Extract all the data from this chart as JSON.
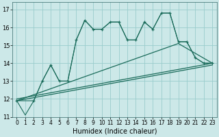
{
  "xlabel": "Humidex (Indice chaleur)",
  "background_color": "#cce8e8",
  "grid_color": "#99cccc",
  "line_color": "#1a6b5a",
  "xlim": [
    -0.5,
    23.5
  ],
  "ylim": [
    11,
    17.4
  ],
  "yticks": [
    11,
    12,
    13,
    14,
    15,
    16,
    17
  ],
  "xticks": [
    0,
    1,
    2,
    3,
    4,
    5,
    6,
    7,
    8,
    9,
    10,
    11,
    12,
    13,
    14,
    15,
    16,
    17,
    18,
    19,
    20,
    21,
    22,
    23
  ],
  "jagged_x": [
    0,
    1,
    2,
    3,
    4,
    5,
    6,
    7,
    8,
    9,
    10,
    11,
    12,
    13,
    14,
    15,
    16,
    17,
    18,
    19,
    20,
    21,
    22,
    23
  ],
  "jagged_y": [
    11.9,
    11.1,
    11.9,
    13.0,
    13.9,
    13.0,
    13.0,
    15.3,
    16.4,
    15.9,
    15.9,
    16.3,
    16.3,
    15.3,
    15.3,
    16.3,
    15.9,
    16.8,
    16.8,
    15.2,
    15.2,
    14.3,
    14.0,
    14.0
  ],
  "marker_x": [
    0,
    2,
    3,
    4,
    5,
    6,
    7,
    8,
    9,
    10,
    11,
    12,
    13,
    14,
    15,
    16,
    17,
    18,
    19,
    20,
    21,
    22,
    23
  ],
  "marker_y": [
    11.9,
    11.9,
    13.0,
    13.9,
    13.0,
    13.0,
    15.3,
    16.4,
    15.9,
    15.9,
    16.3,
    16.3,
    15.3,
    15.3,
    16.3,
    15.9,
    16.8,
    16.8,
    15.2,
    15.2,
    14.3,
    14.0,
    14.0
  ],
  "trend1_x": [
    0,
    19,
    23
  ],
  "trend1_y": [
    11.9,
    15.1,
    14.0
  ],
  "trend2_x": [
    0,
    23
  ],
  "trend2_y": [
    11.9,
    13.9
  ],
  "trend3_x": [
    0,
    23
  ],
  "trend3_y": [
    12.0,
    14.0
  ]
}
